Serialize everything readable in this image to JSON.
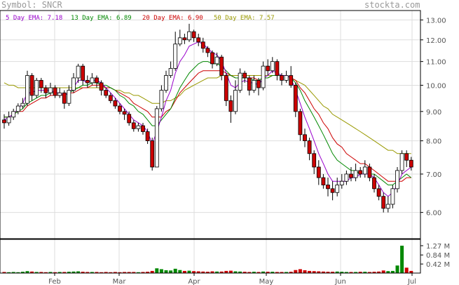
{
  "header": {
    "symbol_label": "Symbol: SNCR",
    "site": "stockta.com"
  },
  "legend": [
    {
      "label": "5 Day EMA: 7.18",
      "color": "#9900cc"
    },
    {
      "label": "13 Day EMA: 6.89",
      "color": "#008800"
    },
    {
      "label": "20 Day EMA: 6.90",
      "color": "#cc0000"
    },
    {
      "label": "50 Day EMA: 7.57",
      "color": "#999900"
    }
  ],
  "chart_data": {
    "type": "candlestick",
    "price_ticks": [
      "13.00",
      "12.00",
      "11.00",
      "10.00",
      "9.00",
      "8.00",
      "7.00",
      "6.00"
    ],
    "volume_ticks": [
      "1.27 M",
      "0.84 M",
      "0.42 M"
    ],
    "months": [
      "Feb",
      "Mar",
      "Apr",
      "May",
      "Jun",
      "Jul"
    ],
    "log_price_axis": true,
    "ylim": [
      5.4,
      13.5
    ],
    "candles": [
      [
        8.7,
        8.6,
        8.9,
        8.4
      ],
      [
        8.6,
        8.8,
        9.0,
        8.5
      ],
      [
        8.8,
        9.0,
        9.1,
        8.7
      ],
      [
        9.0,
        9.2,
        9.3,
        8.9
      ],
      [
        9.2,
        9.3,
        9.5,
        9.1
      ],
      [
        9.3,
        10.4,
        10.6,
        9.2
      ],
      [
        10.4,
        9.6,
        10.5,
        9.4
      ],
      [
        9.6,
        10.2,
        10.3,
        9.5
      ],
      [
        10.2,
        9.9,
        10.3,
        9.7
      ],
      [
        9.9,
        9.7,
        10.0,
        9.5
      ],
      [
        9.7,
        9.9,
        10.1,
        9.6
      ],
      [
        9.9,
        9.6,
        10.0,
        9.5
      ],
      [
        9.6,
        9.7,
        9.9,
        9.5
      ],
      [
        9.7,
        9.3,
        9.8,
        9.1
      ],
      [
        9.3,
        9.8,
        10.0,
        9.2
      ],
      [
        9.8,
        10.3,
        10.5,
        9.7
      ],
      [
        10.3,
        10.8,
        10.9,
        10.1
      ],
      [
        10.8,
        10.2,
        10.9,
        10.0
      ],
      [
        10.2,
        10.1,
        10.4,
        9.9
      ],
      [
        10.1,
        10.3,
        10.5,
        10.0
      ],
      [
        10.3,
        10.1,
        10.4,
        9.9
      ],
      [
        10.1,
        9.8,
        10.2,
        9.6
      ],
      [
        9.8,
        9.6,
        9.9,
        9.5
      ],
      [
        9.6,
        9.4,
        9.7,
        9.3
      ],
      [
        9.4,
        9.2,
        9.5,
        9.1
      ],
      [
        9.2,
        9.0,
        9.3,
        8.9
      ],
      [
        9.0,
        8.9,
        9.1,
        8.7
      ],
      [
        8.9,
        8.6,
        9.0,
        8.5
      ],
      [
        8.6,
        8.4,
        8.7,
        8.3
      ],
      [
        8.4,
        8.5,
        8.6,
        8.3
      ],
      [
        8.5,
        8.3,
        8.6,
        8.2
      ],
      [
        8.3,
        8.0,
        8.4,
        7.9
      ],
      [
        8.0,
        7.2,
        8.1,
        7.1
      ],
      [
        7.2,
        9.1,
        9.2,
        7.2
      ],
      [
        9.1,
        9.8,
        10.0,
        9.0
      ],
      [
        9.8,
        10.4,
        10.6,
        9.7
      ],
      [
        10.4,
        10.7,
        11.0,
        10.3
      ],
      [
        10.7,
        11.8,
        12.4,
        10.6
      ],
      [
        11.8,
        12.1,
        12.5,
        11.7
      ],
      [
        12.1,
        12.0,
        12.3,
        11.8
      ],
      [
        12.0,
        12.4,
        12.8,
        11.9
      ],
      [
        12.4,
        12.1,
        12.5,
        11.9
      ],
      [
        12.1,
        11.9,
        12.3,
        11.7
      ],
      [
        11.9,
        11.6,
        12.1,
        11.4
      ],
      [
        11.6,
        11.4,
        11.7,
        11.2
      ],
      [
        11.4,
        10.9,
        11.5,
        10.7
      ],
      [
        10.9,
        11.2,
        11.4,
        10.8
      ],
      [
        11.2,
        10.4,
        11.3,
        10.2
      ],
      [
        10.4,
        9.4,
        10.5,
        9.2
      ],
      [
        9.4,
        9.0,
        9.6,
        8.6
      ],
      [
        9.0,
        9.8,
        10.2,
        8.9
      ],
      [
        9.8,
        10.5,
        10.7,
        9.7
      ],
      [
        10.5,
        10.3,
        10.6,
        10.1
      ],
      [
        10.3,
        9.8,
        10.4,
        9.6
      ],
      [
        9.8,
        10.2,
        10.4,
        9.7
      ],
      [
        10.2,
        9.9,
        10.3,
        9.6
      ],
      [
        9.9,
        10.8,
        11.0,
        9.8
      ],
      [
        10.8,
        10.6,
        11.1,
        10.4
      ],
      [
        10.6,
        11.0,
        11.2,
        10.5
      ],
      [
        11.0,
        10.4,
        11.1,
        10.2
      ],
      [
        10.4,
        10.2,
        10.5,
        10.0
      ],
      [
        10.2,
        10.4,
        10.6,
        10.1
      ],
      [
        10.4,
        10.0,
        10.8,
        9.9
      ],
      [
        10.0,
        9.0,
        10.1,
        8.8
      ],
      [
        9.0,
        8.2,
        9.1,
        8.0
      ],
      [
        8.2,
        8.0,
        8.4,
        7.8
      ],
      [
        8.0,
        7.6,
        8.1,
        7.4
      ],
      [
        7.6,
        7.2,
        7.7,
        7.0
      ],
      [
        7.2,
        6.9,
        7.4,
        6.7
      ],
      [
        6.9,
        6.7,
        7.0,
        6.6
      ],
      [
        6.7,
        6.6,
        6.9,
        6.4
      ],
      [
        6.6,
        6.5,
        6.8,
        6.3
      ],
      [
        6.5,
        6.7,
        6.9,
        6.4
      ],
      [
        6.7,
        6.8,
        7.0,
        6.6
      ],
      [
        6.8,
        7.0,
        7.1,
        6.7
      ],
      [
        7.0,
        6.9,
        7.2,
        6.8
      ],
      [
        6.9,
        7.1,
        7.3,
        6.8
      ],
      [
        7.1,
        7.0,
        7.2,
        6.9
      ],
      [
        7.0,
        7.2,
        7.4,
        6.9
      ],
      [
        7.2,
        6.9,
        7.3,
        6.8
      ],
      [
        6.9,
        6.6,
        7.0,
        6.5
      ],
      [
        6.6,
        6.4,
        6.7,
        6.3
      ],
      [
        6.4,
        6.1,
        6.5,
        6.0
      ],
      [
        6.1,
        6.2,
        6.4,
        6.0
      ],
      [
        6.2,
        6.6,
        6.7,
        6.1
      ],
      [
        6.6,
        7.1,
        7.2,
        6.5
      ],
      [
        7.1,
        7.6,
        7.7,
        7.0
      ],
      [
        7.6,
        7.4,
        7.7,
        7.2
      ],
      [
        7.4,
        7.2,
        7.5,
        7.1
      ]
    ],
    "volume_m": [
      0.05,
      0.04,
      0.05,
      0.04,
      0.06,
      0.09,
      0.07,
      0.05,
      0.05,
      0.04,
      0.05,
      0.04,
      0.05,
      0.05,
      0.06,
      0.07,
      0.08,
      0.06,
      0.05,
      0.05,
      0.05,
      0.04,
      0.05,
      0.04,
      0.05,
      0.04,
      0.05,
      0.05,
      0.05,
      0.04,
      0.05,
      0.06,
      0.1,
      0.22,
      0.18,
      0.13,
      0.12,
      0.2,
      0.14,
      0.1,
      0.11,
      0.09,
      0.08,
      0.07,
      0.06,
      0.08,
      0.07,
      0.07,
      0.1,
      0.11,
      0.08,
      0.07,
      0.06,
      0.05,
      0.06,
      0.05,
      0.07,
      0.06,
      0.06,
      0.05,
      0.05,
      0.05,
      0.06,
      0.14,
      0.18,
      0.13,
      0.1,
      0.09,
      0.08,
      0.07,
      0.06,
      0.06,
      0.07,
      0.06,
      0.05,
      0.05,
      0.05,
      0.06,
      0.06,
      0.05,
      0.06,
      0.07,
      0.12,
      0.09,
      0.1,
      0.35,
      1.27,
      0.25,
      0.1
    ],
    "ema5": [
      8.7,
      8.8,
      8.9,
      9.1,
      9.3,
      9.7,
      9.7,
      9.8,
      9.8,
      9.8,
      9.8,
      9.7,
      9.7,
      9.6,
      9.7,
      9.9,
      10.2,
      10.2,
      10.1,
      10.2,
      10.2,
      10.1,
      9.9,
      9.7,
      9.5,
      9.3,
      9.1,
      8.9,
      8.7,
      8.6,
      8.5,
      8.3,
      7.9,
      8.3,
      8.8,
      9.4,
      9.8,
      10.5,
      11.0,
      11.3,
      11.7,
      11.8,
      11.9,
      11.8,
      11.6,
      11.4,
      11.3,
      11.0,
      10.5,
      10.0,
      9.9,
      10.1,
      10.2,
      10.1,
      10.1,
      10.0,
      10.3,
      10.4,
      10.6,
      10.5,
      10.4,
      10.4,
      10.3,
      9.8,
      9.3,
      8.8,
      8.4,
      8.0,
      7.6,
      7.3,
      7.0,
      6.8,
      6.8,
      6.8,
      6.8,
      6.9,
      6.9,
      7.0,
      7.0,
      7.0,
      6.9,
      6.7,
      6.5,
      6.4,
      6.5,
      6.7,
      7.0,
      7.1,
      7.2
    ],
    "ema13": [
      8.8,
      8.8,
      8.9,
      9.0,
      9.1,
      9.3,
      9.4,
      9.5,
      9.6,
      9.6,
      9.7,
      9.7,
      9.7,
      9.6,
      9.7,
      9.8,
      9.9,
      10.0,
      10.0,
      10.1,
      10.1,
      10.0,
      10.0,
      9.9,
      9.8,
      9.6,
      9.5,
      9.3,
      9.2,
      9.0,
      8.9,
      8.7,
      8.5,
      8.5,
      8.7,
      8.9,
      9.1,
      9.5,
      9.9,
      10.2,
      10.5,
      10.7,
      10.9,
      11.0,
      11.0,
      10.9,
      10.9,
      10.8,
      10.6,
      10.4,
      10.3,
      10.3,
      10.3,
      10.3,
      10.2,
      10.2,
      10.3,
      10.3,
      10.4,
      10.4,
      10.4,
      10.4,
      10.3,
      10.1,
      9.8,
      9.4,
      9.1,
      8.8,
      8.5,
      8.2,
      7.9,
      7.6,
      7.4,
      7.3,
      7.2,
      7.1,
      7.1,
      7.0,
      7.0,
      7.0,
      7.0,
      6.9,
      6.8,
      6.7,
      6.7,
      6.8,
      6.9,
      7.0,
      6.9
    ],
    "ema20": [
      8.8,
      8.8,
      8.9,
      9.0,
      9.0,
      9.2,
      9.3,
      9.4,
      9.5,
      9.5,
      9.6,
      9.6,
      9.6,
      9.6,
      9.7,
      9.7,
      9.8,
      9.9,
      9.9,
      10.0,
      10.0,
      10.0,
      9.9,
      9.9,
      9.8,
      9.7,
      9.6,
      9.5,
      9.3,
      9.2,
      9.1,
      9.0,
      8.8,
      8.8,
      8.8,
      9.0,
      9.1,
      9.4,
      9.7,
      9.9,
      10.1,
      10.3,
      10.5,
      10.6,
      10.6,
      10.6,
      10.6,
      10.6,
      10.5,
      10.4,
      10.3,
      10.3,
      10.3,
      10.3,
      10.3,
      10.2,
      10.3,
      10.3,
      10.4,
      10.4,
      10.4,
      10.4,
      10.3,
      10.2,
      9.9,
      9.7,
      9.4,
      9.1,
      8.9,
      8.6,
      8.4,
      8.1,
      7.9,
      7.8,
      7.6,
      7.5,
      7.4,
      7.3,
      7.3,
      7.2,
      7.1,
      7.0,
      6.9,
      6.8,
      6.8,
      6.8,
      6.8,
      6.9,
      6.9
    ],
    "ema50": [
      10.1,
      10.0,
      10.0,
      9.9,
      9.9,
      9.9,
      9.9,
      9.9,
      9.9,
      9.9,
      9.9,
      9.9,
      9.9,
      9.9,
      9.9,
      9.9,
      9.9,
      9.9,
      9.9,
      9.9,
      9.9,
      9.9,
      9.9,
      9.9,
      9.8,
      9.8,
      9.7,
      9.7,
      9.6,
      9.6,
      9.5,
      9.4,
      9.3,
      9.3,
      9.3,
      9.4,
      9.4,
      9.5,
      9.6,
      9.8,
      9.9,
      10.0,
      10.1,
      10.2,
      10.3,
      10.3,
      10.3,
      10.4,
      10.4,
      10.4,
      10.4,
      10.4,
      10.4,
      10.4,
      10.4,
      10.4,
      10.4,
      10.4,
      10.4,
      10.4,
      10.4,
      10.4,
      10.3,
      10.2,
      10.1,
      10.0,
      9.8,
      9.6,
      9.4,
      9.2,
      9.1,
      8.9,
      8.8,
      8.7,
      8.6,
      8.5,
      8.4,
      8.3,
      8.2,
      8.1,
      8.0,
      7.9,
      7.8,
      7.7,
      7.7,
      7.6,
      7.6,
      7.6,
      7.6
    ]
  }
}
